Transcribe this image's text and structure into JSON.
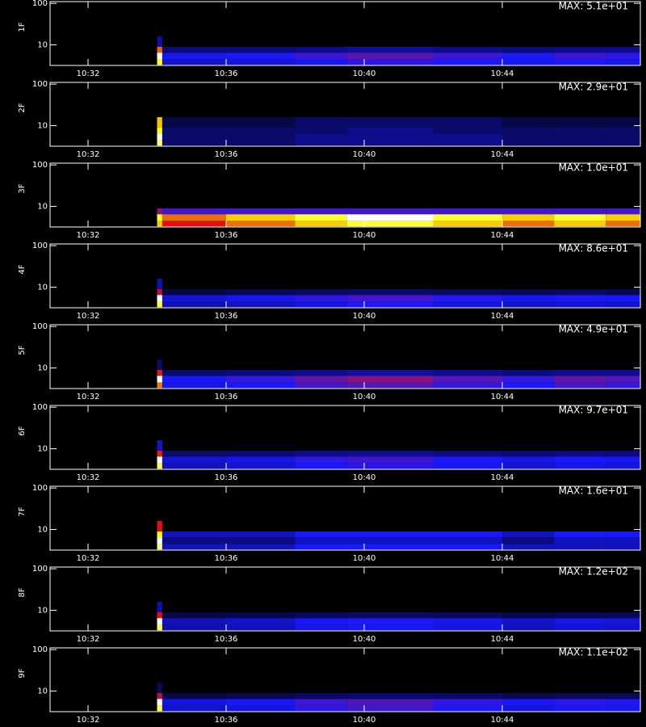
{
  "chart_data": [
    {
      "type": "heatmap",
      "ylabel": "1F",
      "max": {
        "value": 51,
        "label": "MAX: 5.1e+01"
      },
      "xlim": [
        30.9,
        48.0
      ],
      "xticks": [
        {
          "value": 32,
          "label": "10:32"
        },
        {
          "value": 36,
          "label": "10:36"
        },
        {
          "value": 40,
          "label": "10:40"
        },
        {
          "value": 44,
          "label": "10:44"
        }
      ],
      "ylim": [
        3.2,
        110
      ],
      "yticks": [
        10,
        100
      ],
      "log_y": true,
      "colormap": [
        "#000000",
        "#1818ff",
        "#e01010",
        "#ffff00",
        "#ffffff"
      ],
      "x_edges": [
        34.0,
        34.15,
        36,
        38,
        39.5,
        42,
        44,
        45.5,
        47,
        48
      ],
      "y_edges": [
        3.3,
        4.5,
        6.5,
        9,
        16
      ],
      "values": [
        [
          40,
          10,
          11,
          12,
          14,
          13,
          12,
          13,
          12
        ],
        [
          51,
          12,
          13,
          15,
          17,
          15,
          13,
          15,
          14
        ],
        [
          30,
          6,
          6,
          7,
          8,
          7,
          6,
          7,
          7
        ],
        [
          8,
          0,
          0,
          0,
          0,
          0,
          0,
          0,
          0
        ]
      ]
    },
    {
      "type": "heatmap",
      "ylabel": "2F",
      "max": {
        "value": 29,
        "label": "MAX: 2.9e+01"
      },
      "xlim": [
        30.9,
        48.0
      ],
      "xticks": [
        {
          "value": 32,
          "label": "10:32"
        },
        {
          "value": 36,
          "label": "10:36"
        },
        {
          "value": 40,
          "label": "10:40"
        },
        {
          "value": 44,
          "label": "10:44"
        }
      ],
      "ylim": [
        3.2,
        110
      ],
      "yticks": [
        10,
        100
      ],
      "log_y": true,
      "colormap": [
        "#000000",
        "#1818ff",
        "#e01010",
        "#ffff00",
        "#ffffff"
      ],
      "x_edges": [
        34.0,
        34.15,
        36,
        38,
        39.5,
        42,
        44,
        45.5,
        47,
        48
      ],
      "y_edges": [
        3.3,
        4.5,
        6.5,
        9,
        16
      ],
      "values": [
        [
          25,
          3,
          3,
          4,
          4,
          4,
          3,
          3,
          3
        ],
        [
          29,
          3,
          3,
          4,
          4,
          4,
          3,
          3,
          3
        ],
        [
          22,
          3,
          3,
          3,
          4,
          3,
          3,
          3,
          3
        ],
        [
          20,
          2,
          2,
          3,
          3,
          3,
          2,
          2,
          2
        ]
      ]
    },
    {
      "type": "heatmap",
      "ylabel": "3F",
      "max": {
        "value": 10,
        "label": "MAX: 1.0e+01"
      },
      "xlim": [
        30.9,
        48.0
      ],
      "xticks": [
        {
          "value": 32,
          "label": "10:32"
        },
        {
          "value": 36,
          "label": "10:36"
        },
        {
          "value": 40,
          "label": "10:40"
        },
        {
          "value": 44,
          "label": "10:44"
        }
      ],
      "ylim": [
        3.2,
        110
      ],
      "yticks": [
        10,
        100
      ],
      "log_y": true,
      "colormap": [
        "#000000",
        "#1818ff",
        "#e01010",
        "#ffff00",
        "#ffffff"
      ],
      "x_edges": [
        34.0,
        34.15,
        36,
        38,
        39.5,
        42,
        44,
        45.5,
        47,
        48
      ],
      "y_edges": [
        3.3,
        4.5,
        6.5,
        9,
        16
      ],
      "values": [
        [
          7,
          5,
          6,
          7,
          8,
          7,
          6,
          7,
          6
        ],
        [
          8,
          6,
          7,
          8,
          10,
          8,
          7,
          8,
          7
        ],
        [
          4,
          3,
          3,
          3,
          3,
          3,
          3,
          3,
          3
        ],
        [
          0,
          0,
          0,
          0,
          0,
          0,
          0,
          0,
          0
        ]
      ]
    },
    {
      "type": "heatmap",
      "ylabel": "4F",
      "max": {
        "value": 86,
        "label": "MAX: 8.6e+01"
      },
      "xlim": [
        30.9,
        48.0
      ],
      "xticks": [
        {
          "value": 32,
          "label": "10:32"
        },
        {
          "value": 36,
          "label": "10:36"
        },
        {
          "value": 40,
          "label": "10:40"
        },
        {
          "value": 44,
          "label": "10:44"
        }
      ],
      "ylim": [
        3.2,
        110
      ],
      "yticks": [
        10,
        100
      ],
      "log_y": true,
      "colormap": [
        "#000000",
        "#1818ff",
        "#e01010",
        "#ffff00",
        "#ffffff"
      ],
      "x_edges": [
        34.0,
        34.15,
        36,
        38,
        39.5,
        42,
        44,
        45.5,
        47,
        48
      ],
      "y_edges": [
        3.3,
        4.5,
        6.5,
        9,
        16
      ],
      "values": [
        [
          70,
          15,
          16,
          19,
          22,
          19,
          17,
          18,
          17
        ],
        [
          86,
          18,
          20,
          24,
          26,
          23,
          20,
          22,
          21
        ],
        [
          40,
          6,
          7,
          8,
          9,
          8,
          7,
          8,
          7
        ],
        [
          15,
          0,
          0,
          0,
          0,
          0,
          0,
          0,
          0
        ]
      ]
    },
    {
      "type": "heatmap",
      "ylabel": "5F",
      "max": {
        "value": 49,
        "label": "MAX: 4.9e+01"
      },
      "xlim": [
        30.9,
        48.0
      ],
      "xticks": [
        {
          "value": 32,
          "label": "10:32"
        },
        {
          "value": 36,
          "label": "10:36"
        },
        {
          "value": 40,
          "label": "10:40"
        },
        {
          "value": 44,
          "label": "10:44"
        }
      ],
      "ylim": [
        3.2,
        110
      ],
      "yticks": [
        10,
        100
      ],
      "log_y": true,
      "colormap": [
        "#000000",
        "#1818ff",
        "#e01010",
        "#ffff00",
        "#ffffff"
      ],
      "x_edges": [
        34.0,
        34.15,
        36,
        38,
        39.5,
        42,
        44,
        45.5,
        47,
        48
      ],
      "y_edges": [
        3.3,
        4.5,
        6.5,
        9,
        16
      ],
      "values": [
        [
          30,
          11,
          12,
          15,
          16,
          14,
          12,
          15,
          14
        ],
        [
          49,
          12,
          14,
          17,
          19,
          16,
          14,
          17,
          16
        ],
        [
          25,
          5,
          6,
          7,
          8,
          7,
          6,
          7,
          7
        ],
        [
          5,
          0,
          0,
          0,
          0,
          0,
          0,
          0,
          0
        ]
      ]
    },
    {
      "type": "heatmap",
      "ylabel": "6F",
      "max": {
        "value": 97,
        "label": "MAX: 9.7e+01"
      },
      "xlim": [
        30.9,
        48.0
      ],
      "xticks": [
        {
          "value": 32,
          "label": "10:32"
        },
        {
          "value": 36,
          "label": "10:36"
        },
        {
          "value": 40,
          "label": "10:40"
        },
        {
          "value": 44,
          "label": "10:44"
        }
      ],
      "ylim": [
        3.2,
        110
      ],
      "yticks": [
        10,
        100
      ],
      "log_y": true,
      "colormap": [
        "#000000",
        "#1818ff",
        "#e01010",
        "#ffff00",
        "#ffffff"
      ],
      "x_edges": [
        34.0,
        34.15,
        36,
        38,
        39.5,
        42,
        44,
        45.5,
        47,
        48
      ],
      "y_edges": [
        3.3,
        4.5,
        6.5,
        9,
        16
      ],
      "values": [
        [
          80,
          18,
          20,
          24,
          26,
          23,
          20,
          22,
          21
        ],
        [
          97,
          20,
          22,
          27,
          29,
          25,
          22,
          24,
          23
        ],
        [
          50,
          10,
          11,
          13,
          14,
          12,
          11,
          12,
          12
        ],
        [
          20,
          0,
          0,
          0,
          0,
          0,
          0,
          0,
          0
        ]
      ]
    },
    {
      "type": "heatmap",
      "ylabel": "7F",
      "max": {
        "value": 16,
        "label": "MAX: 1.6e+01"
      },
      "xlim": [
        30.9,
        48.0
      ],
      "xticks": [
        {
          "value": 32,
          "label": "10:32"
        },
        {
          "value": 36,
          "label": "10:36"
        },
        {
          "value": 40,
          "label": "10:40"
        },
        {
          "value": 44,
          "label": "10:44"
        }
      ],
      "ylim": [
        3.2,
        110
      ],
      "yticks": [
        10,
        100
      ],
      "log_y": true,
      "colormap": [
        "#000000",
        "#1818ff",
        "#e01010",
        "#ffff00",
        "#ffffff"
      ],
      "x_edges": [
        34.0,
        34.15,
        36,
        38,
        39.5,
        42,
        44,
        45.5,
        47,
        48
      ],
      "y_edges": [
        3.3,
        4.5,
        6.5,
        9,
        16
      ],
      "values": [
        [
          14,
          3,
          3,
          4,
          4,
          4,
          3,
          3,
          3
        ],
        [
          16,
          2,
          2,
          3,
          3,
          3,
          2,
          3,
          3
        ],
        [
          12,
          3,
          3,
          4,
          4,
          4,
          3,
          4,
          4
        ],
        [
          8,
          0,
          0,
          0,
          0,
          0,
          0,
          0,
          0
        ]
      ]
    },
    {
      "type": "heatmap",
      "ylabel": "8F",
      "max": {
        "value": 120,
        "label": "MAX: 1.2e+02"
      },
      "xlim": [
        30.9,
        48.0
      ],
      "xticks": [
        {
          "value": 32,
          "label": "10:32"
        },
        {
          "value": 36,
          "label": "10:36"
        },
        {
          "value": 40,
          "label": "10:40"
        },
        {
          "value": 44,
          "label": "10:44"
        }
      ],
      "ylim": [
        3.2,
        110
      ],
      "yticks": [
        10,
        100
      ],
      "log_y": true,
      "colormap": [
        "#000000",
        "#1818ff",
        "#e01010",
        "#ffff00",
        "#ffffff"
      ],
      "x_edges": [
        34.0,
        34.15,
        36,
        38,
        39.5,
        42,
        44,
        45.5,
        47,
        48
      ],
      "y_edges": [
        3.3,
        4.5,
        6.5,
        9,
        16
      ],
      "values": [
        [
          100,
          20,
          22,
          27,
          29,
          26,
          22,
          25,
          24
        ],
        [
          120,
          22,
          24,
          29,
          31,
          28,
          24,
          27,
          26
        ],
        [
          60,
          8,
          9,
          11,
          12,
          11,
          9,
          10,
          10
        ],
        [
          20,
          0,
          0,
          0,
          0,
          0,
          0,
          0,
          0
        ]
      ]
    },
    {
      "type": "heatmap",
      "ylabel": "9F",
      "max": {
        "value": 110,
        "label": "MAX: 1.1e+02"
      },
      "xlim": [
        30.9,
        48.0
      ],
      "xticks": [
        {
          "value": 32,
          "label": "10:32"
        },
        {
          "value": 36,
          "label": "10:36"
        },
        {
          "value": 40,
          "label": "10:40"
        },
        {
          "value": 44,
          "label": "10:44"
        }
      ],
      "ylim": [
        3.2,
        110
      ],
      "yticks": [
        10,
        100
      ],
      "log_y": true,
      "colormap": [
        "#000000",
        "#1818ff",
        "#e01010",
        "#ffff00",
        "#ffffff"
      ],
      "x_edges": [
        34.0,
        34.15,
        36,
        38,
        39.5,
        42,
        44,
        45.5,
        47,
        48
      ],
      "y_edges": [
        3.3,
        4.5,
        6.5,
        9,
        16
      ],
      "values": [
        [
          90,
          22,
          24,
          30,
          33,
          28,
          24,
          27,
          26
        ],
        [
          110,
          24,
          27,
          33,
          35,
          31,
          27,
          30,
          29
        ],
        [
          50,
          8,
          9,
          11,
          12,
          11,
          9,
          10,
          10
        ],
        [
          10,
          0,
          0,
          0,
          0,
          0,
          0,
          0,
          0
        ]
      ]
    }
  ]
}
